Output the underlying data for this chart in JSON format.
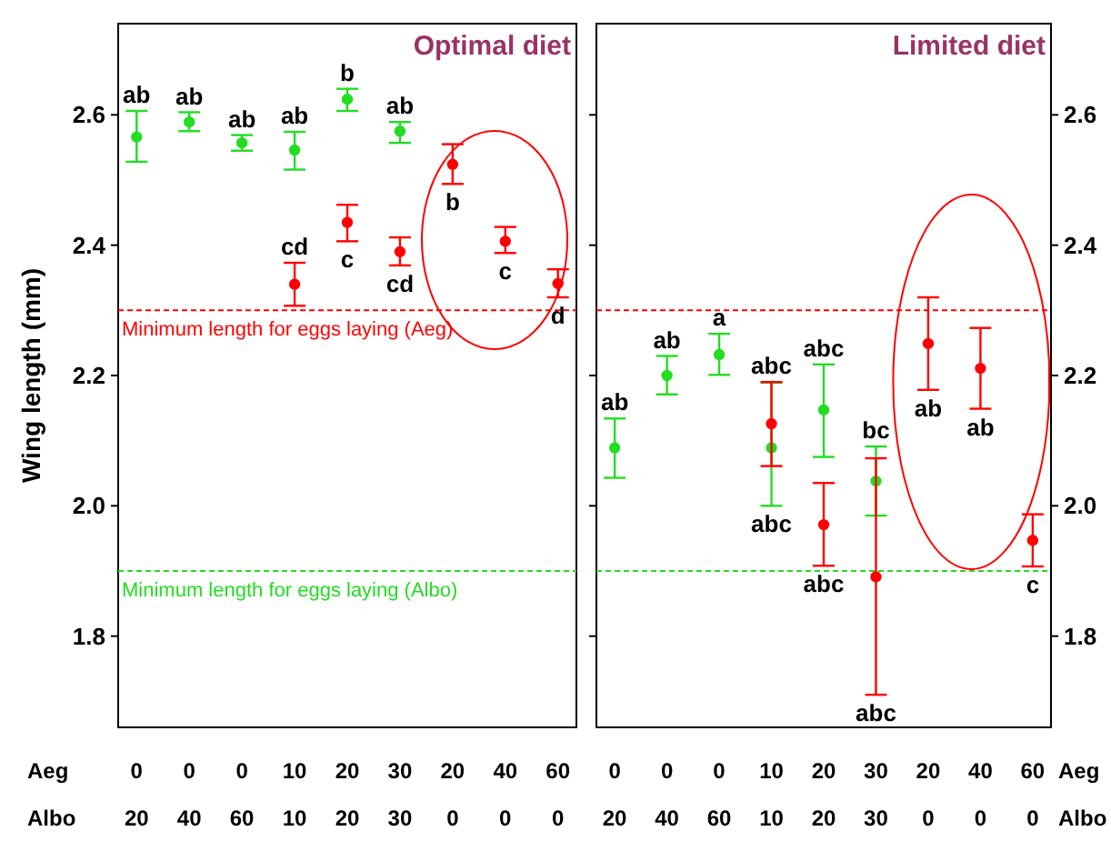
{
  "chart_data": [
    {
      "type": "scatter",
      "title": "Optimal diet",
      "ylabel": "Wing length (mm)",
      "categories": [
        "0\n20",
        "0\n40",
        "0\n60",
        "10\n10",
        "20\n20",
        "30\n30",
        "20\n0",
        "40\n0",
        "60\n0"
      ],
      "ylim": [
        1.66,
        2.74
      ],
      "yticks": [
        {
          "value": 1.8,
          "label": "1.8"
        },
        {
          "value": 2.0,
          "label": "2.0"
        },
        {
          "value": 2.2,
          "label": "2.2"
        },
        {
          "value": 2.4,
          "label": "2.4"
        },
        {
          "value": 2.6,
          "label": "2.6"
        }
      ],
      "marker": "circle",
      "series": [
        {
          "color": "#22dd22",
          "values": [
            2.566,
            2.589,
            2.557,
            2.546,
            2.624,
            2.575,
            null,
            null,
            null
          ],
          "errors": [
            [
              2.528,
              2.606
            ],
            [
              2.575,
              2.604
            ],
            [
              2.545,
              2.569
            ],
            [
              2.516,
              2.574
            ],
            [
              2.606,
              2.64
            ],
            [
              2.557,
              2.589
            ],
            null,
            null,
            null
          ]
        },
        {
          "color": "#ff0000",
          "values": [
            null,
            null,
            null,
            2.34,
            2.435,
            2.39,
            2.524,
            2.406,
            2.341
          ],
          "errors": [
            null,
            null,
            null,
            [
              2.307,
              2.373
            ],
            [
              2.406,
              2.462
            ],
            [
              2.369,
              2.412
            ],
            [
              2.494,
              2.555
            ],
            [
              2.388,
              2.428
            ],
            [
              2.32,
              2.363
            ]
          ]
        }
      ],
      "ref_lines": [
        {
          "axis": "y",
          "value": 2.3,
          "label": "Minimum length for eggs laying (Aeg)",
          "color": "#ff0000",
          "line_style": "dashed"
        },
        {
          "axis": "y",
          "value": 1.9,
          "label": "Minimum length for eggs laying (Albo)",
          "color": "#22dd22",
          "line_style": "dashed"
        }
      ],
      "annotations": [
        "Aeg",
        "Albo",
        {
          "text": "ab",
          "x": "0\n20",
          "y": 2.606
        },
        {
          "text": "ab",
          "x": "0\n40",
          "y": 2.604
        },
        {
          "text": "ab",
          "x": "0\n60",
          "y": 2.569
        },
        {
          "text": "ab",
          "x": "10\n10",
          "y": 2.574
        },
        {
          "text": "b",
          "x": "20\n20",
          "y": 2.64
        },
        {
          "text": "ab",
          "x": "30\n30",
          "y": 2.589
        },
        {
          "text": "cd",
          "x": "10\n10",
          "y": 2.373
        },
        {
          "text": "c",
          "x": "20\n20",
          "y": 2.406
        },
        {
          "text": "cd",
          "x": "30\n30",
          "y": 2.369
        },
        {
          "text": "b",
          "x": "20\n0",
          "y": 2.494
        },
        {
          "text": "c",
          "x": "40\n0",
          "y": 2.388
        },
        {
          "text": "d",
          "x": "60\n0",
          "y": 2.32
        }
      ]
    },
    {
      "type": "scatter",
      "title": "Limited diet",
      "categories": [
        "0\n20",
        "0\n40",
        "0\n60",
        "10\n10",
        "20\n20",
        "30\n30",
        "20\n0",
        "40\n0",
        "60\n0"
      ],
      "ylim": [
        1.66,
        2.74
      ],
      "yticks": [
        {
          "value": 1.8,
          "label": "1.8"
        },
        {
          "value": 2.0,
          "label": "2.0"
        },
        {
          "value": 2.2,
          "label": "2.2"
        },
        {
          "value": 2.4,
          "label": "2.4"
        },
        {
          "value": 2.6,
          "label": "2.6"
        }
      ],
      "marker": "circle",
      "series": [
        {
          "color": "#22dd22",
          "values": [
            2.089,
            2.2,
            2.232,
            2.089,
            2.147,
            2.038,
            null,
            null,
            null
          ],
          "errors": [
            [
              2.043,
              2.134
            ],
            [
              2.171,
              2.23
            ],
            [
              2.201,
              2.264
            ],
            [
              2.0,
              2.189
            ],
            [
              2.075,
              2.217
            ],
            [
              1.985,
              2.091
            ],
            null,
            null,
            null
          ]
        },
        {
          "color": "#ff0000",
          "values": [
            null,
            null,
            null,
            2.126,
            1.971,
            1.891,
            2.249,
            2.211,
            1.947
          ],
          "errors": [
            null,
            null,
            null,
            [
              2.061,
              2.19
            ],
            [
              1.908,
              2.035
            ],
            [
              1.71,
              2.073
            ],
            [
              2.178,
              2.32
            ],
            [
              2.149,
              2.273
            ],
            [
              1.907,
              1.987
            ]
          ]
        }
      ],
      "ref_lines": [
        {
          "axis": "y",
          "value": 2.3,
          "color": "#ff0000",
          "line_style": "dashed"
        },
        {
          "axis": "y",
          "value": 1.9,
          "color": "#22dd22",
          "line_style": "dashed"
        }
      ],
      "annotations": [
        "Aeg",
        "Albo",
        {
          "text": "ab",
          "x": "0\n20",
          "y": 2.134
        },
        {
          "text": "ab",
          "x": "0\n40",
          "y": 2.23
        },
        {
          "text": "a",
          "x": "0\n60",
          "y": 2.264
        },
        {
          "text": "abc",
          "x": "10\n10",
          "y": 2.19
        },
        {
          "text": "abc",
          "x": "20\n20",
          "y": 2.217
        },
        {
          "text": "bc",
          "x": "30\n30",
          "y": 2.091
        },
        {
          "text": "abc",
          "x": "10\n10",
          "y": 2.0
        },
        {
          "text": "abc",
          "x": "20\n20",
          "y": 1.908
        },
        {
          "text": "abc",
          "x": "30\n30",
          "y": 1.71
        },
        {
          "text": "ab",
          "x": "20\n0",
          "y": 2.178
        },
        {
          "text": "ab",
          "x": "40\n0",
          "y": 2.149
        },
        {
          "text": "c",
          "x": "60\n0",
          "y": 1.907
        }
      ]
    }
  ]
}
